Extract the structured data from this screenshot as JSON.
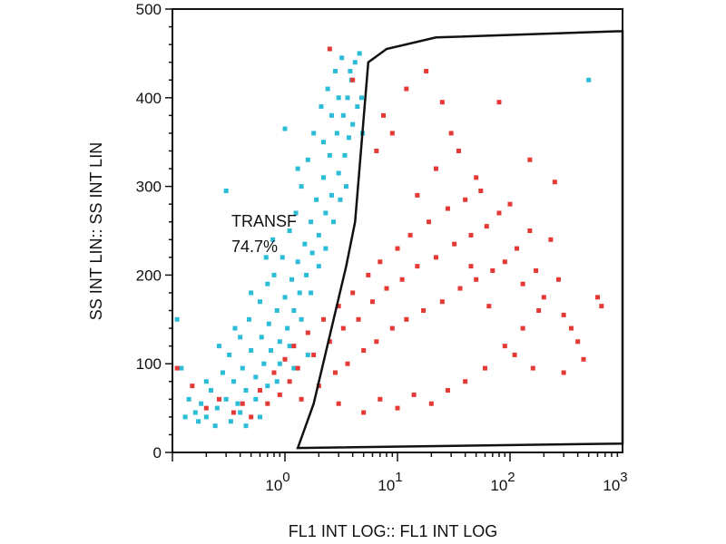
{
  "chart_data": {
    "type": "scatter",
    "xlabel": "FL1 INT LOG:: FL1 INT LOG",
    "ylabel": "SS INT LIN:: SS INT LIN",
    "xscale": "log",
    "xlim": [
      0.1,
      1000
    ],
    "ylim": [
      0,
      500
    ],
    "yticks": [
      0,
      100,
      200,
      300,
      400,
      500
    ],
    "xticks": [
      {
        "value": 1,
        "base": "10",
        "exp": "0"
      },
      {
        "value": 10,
        "base": "10",
        "exp": "1"
      },
      {
        "value": 100,
        "base": "10",
        "exp": "2"
      },
      {
        "value": 1000,
        "base": "10",
        "exp": "3"
      }
    ],
    "gate": {
      "label": "TRANSF",
      "percent": "74.7%",
      "polygon": [
        [
          1.3,
          5
        ],
        [
          1.8,
          55
        ],
        [
          3.5,
          210
        ],
        [
          4.2,
          260
        ],
        [
          5.5,
          440
        ],
        [
          8.0,
          455
        ],
        [
          22,
          468
        ],
        [
          900,
          475
        ],
        [
          1000,
          475
        ],
        [
          1000,
          10
        ]
      ],
      "color": "#111111"
    },
    "series": [
      {
        "color": "#2bbcd8",
        "points": [
          [
            0.11,
            150
          ],
          [
            0.12,
            95
          ],
          [
            0.14,
            60
          ],
          [
            0.16,
            45
          ],
          [
            0.18,
            55
          ],
          [
            0.2,
            40
          ],
          [
            0.22,
            70
          ],
          [
            0.25,
            50
          ],
          [
            0.28,
            90
          ],
          [
            0.3,
            60
          ],
          [
            0.32,
            110
          ],
          [
            0.35,
            80
          ],
          [
            0.38,
            55
          ],
          [
            0.4,
            130
          ],
          [
            0.42,
            95
          ],
          [
            0.45,
            70
          ],
          [
            0.48,
            150
          ],
          [
            0.5,
            115
          ],
          [
            0.55,
            85
          ],
          [
            0.6,
            170
          ],
          [
            0.62,
            130
          ],
          [
            0.65,
            100
          ],
          [
            0.7,
            190
          ],
          [
            0.72,
            145
          ],
          [
            0.75,
            115
          ],
          [
            0.8,
            200
          ],
          [
            0.85,
            160
          ],
          [
            0.9,
            125
          ],
          [
            0.95,
            220
          ],
          [
            1.0,
            175
          ],
          [
            1.05,
            140
          ],
          [
            1.1,
            250
          ],
          [
            1.15,
            195
          ],
          [
            1.2,
            160
          ],
          [
            1.25,
            270
          ],
          [
            1.3,
            215
          ],
          [
            1.35,
            180
          ],
          [
            1.4,
            300
          ],
          [
            1.5,
            235
          ],
          [
            1.55,
            200
          ],
          [
            1.6,
            330
          ],
          [
            1.7,
            260
          ],
          [
            1.75,
            225
          ],
          [
            1.8,
            360
          ],
          [
            1.9,
            285
          ],
          [
            2.0,
            245
          ],
          [
            2.1,
            390
          ],
          [
            2.2,
            310
          ],
          [
            2.3,
            270
          ],
          [
            2.4,
            410
          ],
          [
            2.5,
            335
          ],
          [
            2.6,
            290
          ],
          [
            2.8,
            430
          ],
          [
            2.9,
            360
          ],
          [
            3.0,
            315
          ],
          [
            3.2,
            445
          ],
          [
            3.3,
            380
          ],
          [
            3.4,
            335
          ],
          [
            3.6,
            400
          ],
          [
            3.7,
            355
          ],
          [
            3.9,
            420
          ],
          [
            4.0,
            370
          ],
          [
            4.2,
            440
          ],
          [
            4.4,
            390
          ],
          [
            0.3,
            295
          ],
          [
            1.0,
            365
          ],
          [
            0.13,
            40
          ],
          [
            0.17,
            35
          ],
          [
            0.24,
            30
          ],
          [
            0.33,
            35
          ],
          [
            0.45,
            30
          ],
          [
            0.6,
            40
          ],
          [
            500,
            420
          ],
          [
            0.9,
            100
          ],
          [
            1.1,
            120
          ],
          [
            1.4,
            150
          ],
          [
            1.7,
            180
          ],
          [
            2.0,
            210
          ],
          [
            2.3,
            230
          ],
          [
            2.7,
            260
          ],
          [
            3.1,
            285
          ],
          [
            3.5,
            300
          ],
          [
            0.55,
            60
          ],
          [
            0.7,
            75
          ],
          [
            0.85,
            80
          ],
          [
            1.2,
            95
          ],
          [
            1.6,
            110
          ],
          [
            0.4,
            45
          ],
          [
            0.2,
            80
          ],
          [
            0.26,
            120
          ],
          [
            0.36,
            140
          ],
          [
            0.5,
            180
          ],
          [
            0.68,
            220
          ],
          [
            0.78,
            240
          ],
          [
            1.3,
            320
          ],
          [
            2.2,
            350
          ],
          [
            2.6,
            380
          ],
          [
            3.0,
            400
          ],
          [
            3.8,
            430
          ],
          [
            4.6,
            450
          ],
          [
            4.8,
            400
          ],
          [
            4.9,
            360
          ]
        ]
      },
      {
        "color": "#e53935",
        "points": [
          [
            0.11,
            95
          ],
          [
            0.15,
            75
          ],
          [
            0.2,
            50
          ],
          [
            0.26,
            60
          ],
          [
            0.35,
            45
          ],
          [
            0.42,
            55
          ],
          [
            0.5,
            40
          ],
          [
            0.6,
            70
          ],
          [
            0.7,
            55
          ],
          [
            0.8,
            90
          ],
          [
            0.9,
            65
          ],
          [
            1.0,
            105
          ],
          [
            1.1,
            80
          ],
          [
            1.2,
            120
          ],
          [
            1.3,
            95
          ],
          [
            1.4,
            60
          ],
          [
            1.6,
            135
          ],
          [
            1.8,
            110
          ],
          [
            2.0,
            75
          ],
          [
            2.2,
            150
          ],
          [
            2.5,
            125
          ],
          [
            2.8,
            90
          ],
          [
            3.0,
            165
          ],
          [
            3.3,
            140
          ],
          [
            3.6,
            100
          ],
          [
            4.0,
            180
          ],
          [
            4.5,
            150
          ],
          [
            5.0,
            115
          ],
          [
            5.5,
            200
          ],
          [
            6.0,
            170
          ],
          [
            6.5,
            125
          ],
          [
            7.0,
            215
          ],
          [
            8.0,
            185
          ],
          [
            9.0,
            140
          ],
          [
            10,
            230
          ],
          [
            11,
            195
          ],
          [
            12,
            150
          ],
          [
            13,
            245
          ],
          [
            15,
            210
          ],
          [
            17,
            160
          ],
          [
            19,
            260
          ],
          [
            22,
            220
          ],
          [
            25,
            170
          ],
          [
            28,
            275
          ],
          [
            32,
            235
          ],
          [
            36,
            185
          ],
          [
            40,
            285
          ],
          [
            45,
            245
          ],
          [
            50,
            195
          ],
          [
            55,
            295
          ],
          [
            62,
            255
          ],
          [
            70,
            205
          ],
          [
            80,
            270
          ],
          [
            90,
            215
          ],
          [
            100,
            280
          ],
          [
            115,
            230
          ],
          [
            130,
            190
          ],
          [
            150,
            250
          ],
          [
            170,
            205
          ],
          [
            200,
            175
          ],
          [
            230,
            240
          ],
          [
            270,
            195
          ],
          [
            300,
            155
          ],
          [
            350,
            140
          ],
          [
            400,
            125
          ],
          [
            600,
            175
          ],
          [
            650,
            165
          ],
          [
            450,
            105
          ],
          [
            300,
            90
          ],
          [
            2.5,
            455
          ],
          [
            4.0,
            420
          ],
          [
            6.5,
            340
          ],
          [
            9.0,
            360
          ],
          [
            12,
            410
          ],
          [
            18,
            430
          ],
          [
            25,
            395
          ],
          [
            35,
            340
          ],
          [
            50,
            310
          ],
          [
            80,
            395
          ],
          [
            150,
            330
          ],
          [
            250,
            305
          ],
          [
            3.0,
            55
          ],
          [
            5.0,
            45
          ],
          [
            7.0,
            60
          ],
          [
            10,
            50
          ],
          [
            14,
            65
          ],
          [
            20,
            55
          ],
          [
            28,
            70
          ],
          [
            40,
            80
          ],
          [
            60,
            95
          ],
          [
            90,
            120
          ],
          [
            130,
            140
          ],
          [
            180,
            160
          ],
          [
            7.5,
            380
          ],
          [
            15,
            290
          ],
          [
            22,
            320
          ],
          [
            30,
            360
          ],
          [
            45,
            210
          ],
          [
            65,
            165
          ],
          [
            110,
            110
          ],
          [
            160,
            95
          ]
        ]
      }
    ]
  }
}
